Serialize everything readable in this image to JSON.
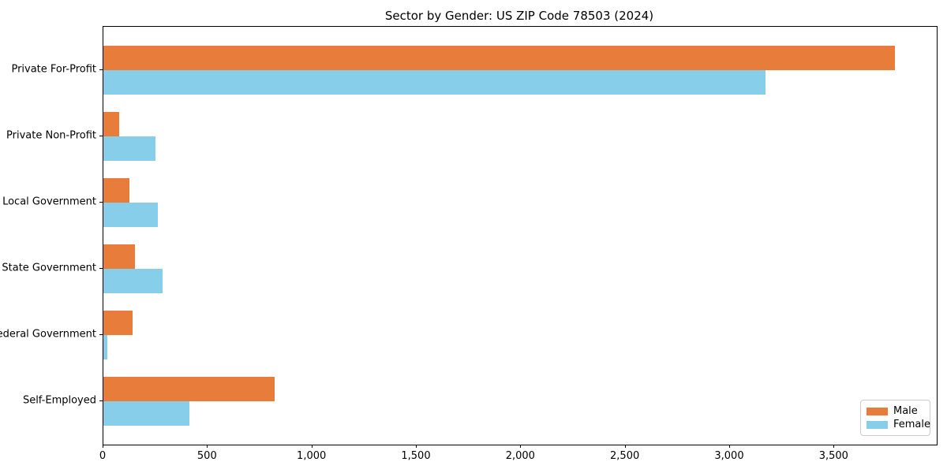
{
  "chart_data": {
    "type": "bar",
    "orientation": "horizontal",
    "title": "Sector by Gender: US ZIP Code 78503 (2024)",
    "categories": [
      "Private For-Profit",
      "Private Non-Profit",
      "Local Government",
      "State Government",
      "Federal Government",
      "Self-Employed"
    ],
    "series": [
      {
        "name": "Male",
        "color": "#e87d3b",
        "values": [
          3790,
          75,
          125,
          150,
          140,
          820
        ]
      },
      {
        "name": "Female",
        "color": "#87ceeb",
        "values": [
          3170,
          250,
          260,
          285,
          20,
          410
        ]
      }
    ],
    "xlabel": "",
    "ylabel": "",
    "xlim": [
      0,
      3990
    ],
    "xtick_values": [
      0,
      500,
      1000,
      1500,
      2000,
      2500,
      3000,
      3500
    ],
    "xtick_labels": [
      "0",
      "500",
      "1,000",
      "1,500",
      "2,000",
      "2,500",
      "3,000",
      "3,500"
    ],
    "grid": false,
    "legend": {
      "position": "lower right",
      "entries": [
        "Male",
        "Female"
      ]
    },
    "colors": {
      "axis": "#000000",
      "background": "#ffffff",
      "legend_border": "#cccccc"
    }
  }
}
